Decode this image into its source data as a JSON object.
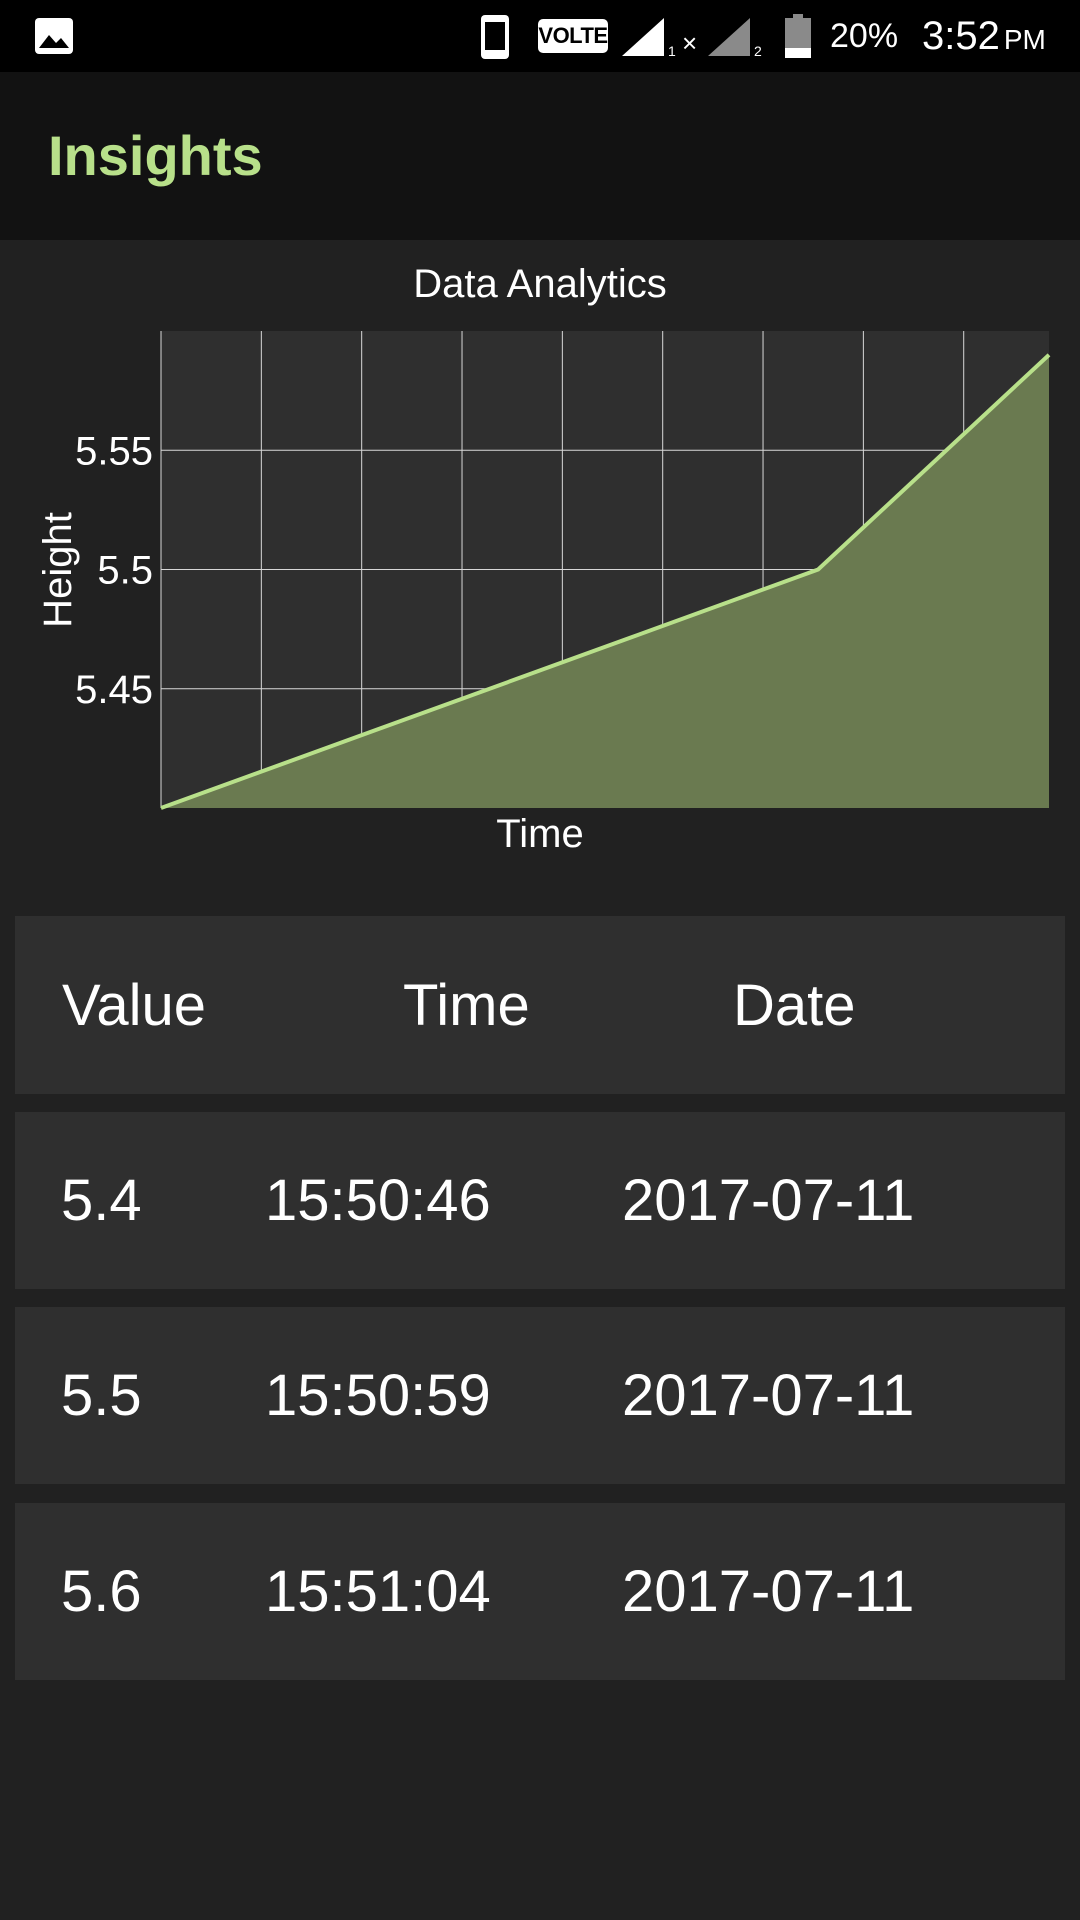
{
  "status_bar": {
    "left_icon": "image-icon",
    "volte": "VOLTE",
    "sim1": "1",
    "sim2": "2",
    "battery_percent": "20%",
    "time": "3:52",
    "ampm": "PM"
  },
  "app_bar": {
    "title": "Insights",
    "title_color": "#b8e08a"
  },
  "chart_data": {
    "type": "area",
    "title": "Data Analytics",
    "xlabel": "Time",
    "ylabel": "Height",
    "yticks": [
      "5.55",
      "5.5",
      "5.45"
    ],
    "ytick_values": [
      5.55,
      5.5,
      5.45
    ],
    "ylim": [
      5.4,
      5.6
    ],
    "xlim": [
      0,
      1
    ],
    "x": [
      0,
      0.74,
      1
    ],
    "values": [
      5.4,
      5.5,
      5.59
    ],
    "grid": true,
    "line_color": "#b8e08a",
    "fill_color": "#6a7a50"
  },
  "table": {
    "headers": [
      "Value",
      "Time",
      "Date"
    ],
    "rows": [
      [
        "5.4",
        "15:50:46",
        "2017-07-11"
      ],
      [
        "5.5",
        "15:50:59",
        "2017-07-11"
      ],
      [
        "5.6",
        "15:51:04",
        "2017-07-11"
      ]
    ]
  }
}
